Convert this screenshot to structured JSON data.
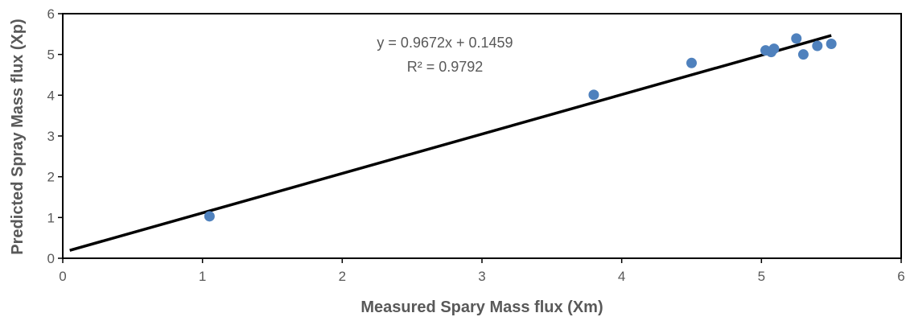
{
  "chart_data": {
    "type": "scatter",
    "title": "",
    "xlabel": "Measured Spary Mass flux (Xm)",
    "ylabel": "Predicted Spray Mass flux (Xp)",
    "xlim": [
      0,
      6
    ],
    "ylim": [
      0,
      6
    ],
    "x_ticks": [
      "0",
      "1",
      "2",
      "3",
      "4",
      "5",
      "6"
    ],
    "y_ticks": [
      "0",
      "1",
      "2",
      "3",
      "4",
      "5",
      "6"
    ],
    "grid": false,
    "legend": "none",
    "series": [
      {
        "color": "#4f81bd",
        "points": [
          {
            "x": 1.05,
            "y": 1.03
          },
          {
            "x": 3.8,
            "y": 4.01
          },
          {
            "x": 4.5,
            "y": 4.79
          },
          {
            "x": 5.03,
            "y": 5.1
          },
          {
            "x": 5.07,
            "y": 5.06
          },
          {
            "x": 5.09,
            "y": 5.14
          },
          {
            "x": 5.25,
            "y": 5.39
          },
          {
            "x": 5.3,
            "y": 5.0
          },
          {
            "x": 5.4,
            "y": 5.21
          },
          {
            "x": 5.5,
            "y": 5.26
          }
        ]
      }
    ],
    "trendline": {
      "color": "#000000",
      "slope": 0.9672,
      "intercept": 0.1459,
      "x_range": [
        0.05,
        5.5
      ]
    },
    "annotations": {
      "equation": "y = 0.9672x + 0.1459",
      "r_squared": "R² = 0.9792"
    }
  }
}
